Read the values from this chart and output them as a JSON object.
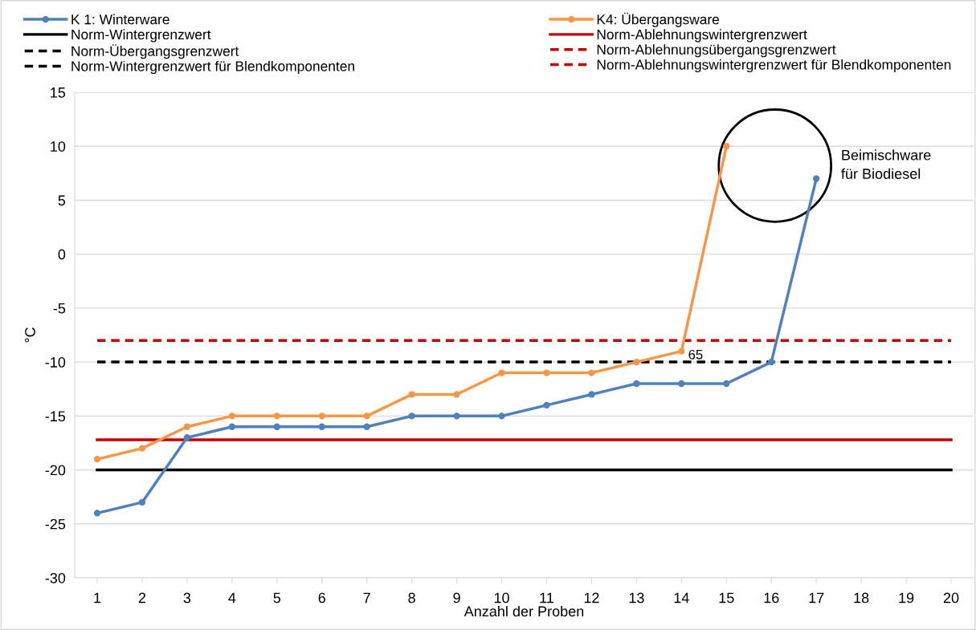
{
  "chart_data": {
    "type": "line",
    "xlabel": "Anzahl der Proben",
    "ylabel": "°C",
    "categories": [
      "1",
      "2",
      "3",
      "4",
      "5",
      "6",
      "7",
      "8",
      "9",
      "10",
      "11",
      "12",
      "13",
      "14",
      "15",
      "16",
      "17",
      "18",
      "19",
      "20"
    ],
    "series": [
      {
        "name": "K 1: Winterware",
        "color": "#4f81bd",
        "marker": "circle",
        "line_style": "solid",
        "values": [
          -24,
          -23,
          -17,
          -16,
          -16,
          -16,
          -16,
          -15,
          -15,
          -15,
          -14,
          -13,
          -12,
          -12,
          -12,
          -10,
          7,
          null,
          null,
          null
        ]
      },
      {
        "name": "K4: Übergangsware",
        "color": "#f79646",
        "marker": "circle",
        "line_style": "solid",
        "values": [
          -19,
          -18,
          -16,
          -15,
          -15,
          -15,
          -15,
          -13,
          -13,
          -11,
          -11,
          -11,
          -10,
          -9,
          10,
          null,
          null,
          null,
          null,
          null
        ]
      },
      {
        "name": "Norm-Wintergrenzwert",
        "color": "#000000",
        "marker": "none",
        "line_style": "solid",
        "values": [
          -20,
          -20,
          -20,
          -20,
          -20,
          -20,
          -20,
          -20,
          -20,
          -20,
          -20,
          -20,
          -20,
          -20,
          -20,
          -20,
          -20,
          -20,
          -20,
          -20
        ]
      },
      {
        "name": "Norm-Ablehnungswintergrenzwert",
        "color": "#c00000",
        "marker": "none",
        "line_style": "solid",
        "values": [
          -17.2,
          -17.2,
          -17.2,
          -17.2,
          -17.2,
          -17.2,
          -17.2,
          -17.2,
          -17.2,
          -17.2,
          -17.2,
          -17.2,
          -17.2,
          -17.2,
          -17.2,
          -17.2,
          -17.2,
          -17.2,
          -17.2,
          -17.2
        ]
      },
      {
        "name": "Norm-Übergangsgrenzwert",
        "color": "#000000",
        "marker": "none",
        "line_style": "dashed",
        "values": [
          -10,
          -10,
          -10,
          -10,
          -10,
          -10,
          -10,
          -10,
          -10,
          -10,
          -10,
          -10,
          -10,
          -10,
          -10,
          -10,
          -10,
          -10,
          -10,
          -10
        ]
      },
      {
        "name": "Norm-Ablehnungsübergangsgrenzwert",
        "color": "#c00000",
        "marker": "none",
        "line_style": "dashed",
        "values": [
          -8,
          -8,
          -8,
          -8,
          -8,
          -8,
          -8,
          -8,
          -8,
          -8,
          -8,
          -8,
          -8,
          -8,
          -8,
          -8,
          -8,
          -8,
          -8,
          -8
        ]
      },
      {
        "name": "Norm-Wintergrenzwert für Blendkomponenten",
        "color": "#000000",
        "marker": "none",
        "line_style": "dashed",
        "values": [
          null,
          null,
          null,
          null,
          null,
          null,
          null,
          null,
          null,
          null,
          null,
          null,
          null,
          null,
          null,
          null,
          null,
          null,
          null,
          null
        ]
      },
      {
        "name": "Norm-Ablehnungswintergrenzwert für Blendkomponenten",
        "color": "#c00000",
        "marker": "none",
        "line_style": "dashed",
        "values": [
          null,
          null,
          null,
          null,
          null,
          null,
          null,
          null,
          null,
          null,
          null,
          null,
          null,
          null,
          null,
          null,
          null,
          null,
          null,
          null
        ]
      }
    ],
    "annotations": [
      {
        "text": "65",
        "x": "14",
        "y": -9
      },
      "Beimischware\nfür Biodiesel"
    ],
    "ylim": [
      -30,
      15
    ],
    "yticks": [
      -30,
      -25,
      -20,
      -15,
      -10,
      -5,
      0,
      5,
      10,
      15
    ],
    "grid": "y",
    "legend": "top"
  }
}
